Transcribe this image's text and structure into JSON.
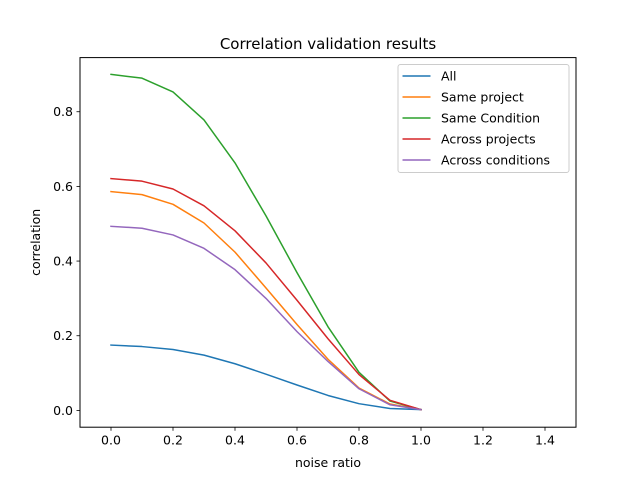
{
  "chart_data": {
    "type": "line",
    "title": "Correlation validation results",
    "xlabel": "noise ratio",
    "ylabel": "correlation",
    "xlim": [
      -0.1,
      1.5
    ],
    "ylim": [
      -0.045,
      0.945
    ],
    "xticks": [
      0.0,
      0.2,
      0.4,
      0.6,
      0.8,
      1.0,
      1.2,
      1.4
    ],
    "xtick_labels": [
      "0.0",
      "0.2",
      "0.4",
      "0.6",
      "0.8",
      "1.0",
      "1.2",
      "1.4"
    ],
    "yticks": [
      0.0,
      0.2,
      0.4,
      0.6,
      0.8
    ],
    "ytick_labels": [
      "0.0",
      "0.2",
      "0.4",
      "0.6",
      "0.8"
    ],
    "grid": false,
    "legend_position": "top-right",
    "x": [
      0.0,
      0.1,
      0.2,
      0.3,
      0.4,
      0.5,
      0.6,
      0.7,
      0.8,
      0.9,
      1.0
    ],
    "series": [
      {
        "name": "All",
        "color": "#1f77b4",
        "values": [
          0.175,
          0.171,
          0.163,
          0.148,
          0.125,
          0.097,
          0.068,
          0.04,
          0.018,
          0.005,
          0.002
        ]
      },
      {
        "name": "Same project",
        "color": "#ff7f0e",
        "values": [
          0.586,
          0.578,
          0.552,
          0.502,
          0.424,
          0.328,
          0.23,
          0.137,
          0.06,
          0.017,
          0.002
        ]
      },
      {
        "name": "Same Condition",
        "color": "#2ca02c",
        "values": [
          0.9,
          0.89,
          0.853,
          0.778,
          0.663,
          0.521,
          0.369,
          0.224,
          0.102,
          0.025,
          0.002
        ]
      },
      {
        "name": "Across projects",
        "color": "#d62728",
        "values": [
          0.621,
          0.614,
          0.593,
          0.548,
          0.481,
          0.395,
          0.295,
          0.192,
          0.096,
          0.027,
          0.002
        ]
      },
      {
        "name": "Across conditions",
        "color": "#9467bd",
        "values": [
          0.493,
          0.488,
          0.47,
          0.434,
          0.377,
          0.3,
          0.211,
          0.131,
          0.058,
          0.015,
          0.002
        ]
      }
    ]
  }
}
